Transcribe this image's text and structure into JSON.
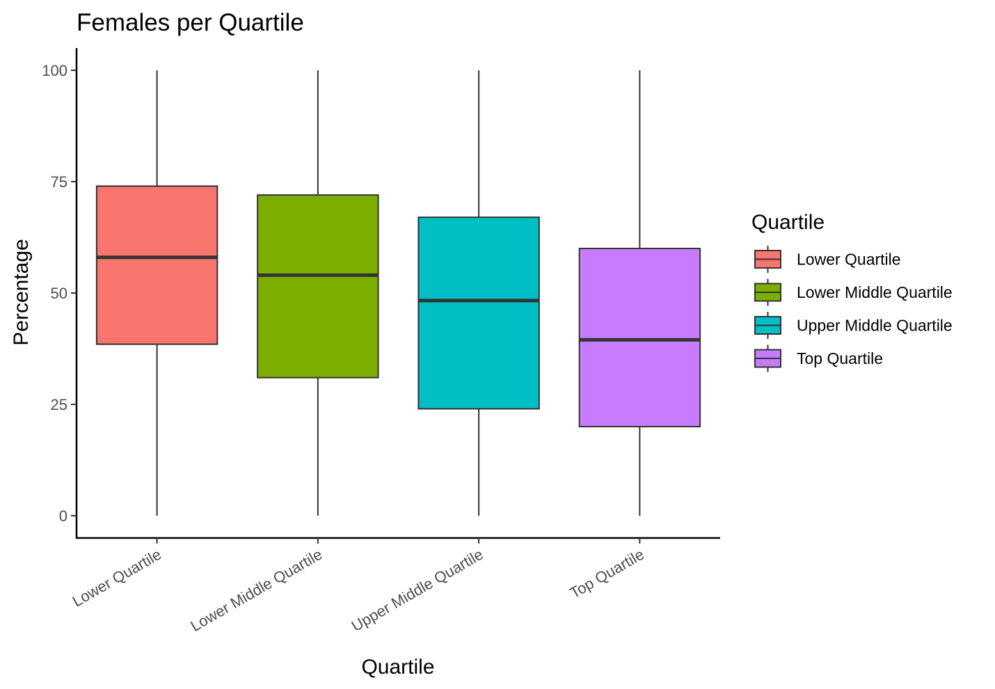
{
  "chart_data": {
    "type": "boxplot",
    "title": "Females per Quartile",
    "xlabel": "Quartile",
    "ylabel": "Percentage",
    "ylim": [
      -5,
      105
    ],
    "yticks": [
      0,
      25,
      50,
      75,
      100
    ],
    "categories": [
      "Lower Quartile",
      "Lower Middle Quartile",
      "Upper Middle Quartile",
      "Top Quartile"
    ],
    "boxes": [
      {
        "category": "Lower Quartile",
        "min": 0,
        "q1": 38.5,
        "median": 58,
        "q3": 74,
        "max": 100,
        "color": "#F8766D"
      },
      {
        "category": "Lower Middle Quartile",
        "min": 0,
        "q1": 31,
        "median": 54,
        "q3": 72,
        "max": 100,
        "color": "#7CAE00"
      },
      {
        "category": "Upper Middle Quartile",
        "min": 0,
        "q1": 24,
        "median": 48.3,
        "q3": 67,
        "max": 100,
        "color": "#00BFC4"
      },
      {
        "category": "Top Quartile",
        "min": 0,
        "q1": 20,
        "median": 39.5,
        "q3": 60,
        "max": 100,
        "color": "#C77CFF"
      }
    ],
    "grid": false,
    "legend": {
      "title": "Quartile",
      "position": "right",
      "entries": [
        "Lower Quartile",
        "Lower Middle Quartile",
        "Upper Middle Quartile",
        "Top Quartile"
      ]
    }
  }
}
